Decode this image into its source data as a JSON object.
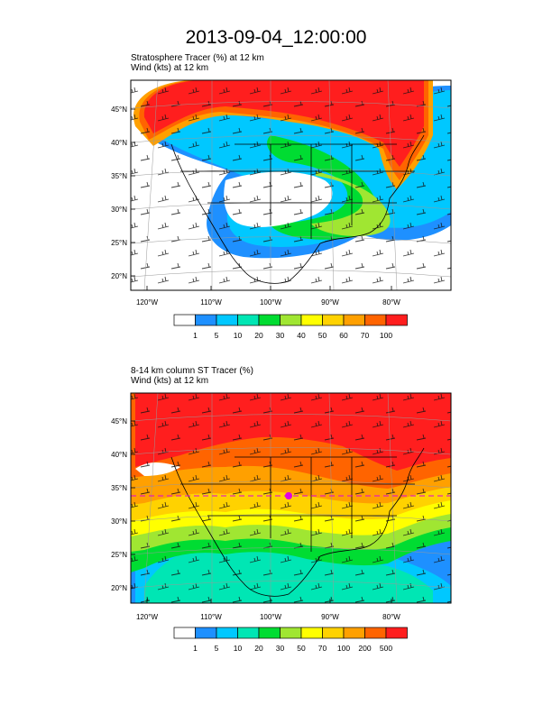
{
  "title": "2013-09-04_12:00:00",
  "panels": [
    {
      "title_line1": "Stratosphere Tracer   (%)    at   12 km",
      "title_line2": "Wind   (kts)    at   12 km",
      "lat_labels": [
        "45°N",
        "40°N",
        "35°N",
        "30°N",
        "25°N",
        "20°N"
      ],
      "lon_labels": [
        "120°W",
        "110°W",
        "100°W",
        "90°W",
        "80°W"
      ],
      "colorbar": {
        "levels": [
          "1",
          "5",
          "10",
          "20",
          "30",
          "40",
          "50",
          "60",
          "70",
          "100"
        ],
        "colors": [
          "#ffffff",
          "#1e90ff",
          "#00c8ff",
          "#00e6b4",
          "#00dc32",
          "#a0e632",
          "#ffff00",
          "#ffd200",
          "#ffa000",
          "#ff6400",
          "#ff1e1e"
        ]
      }
    },
    {
      "title_line1": "8-14 km column ST Tracer   (%)",
      "title_line2": "Wind   (kts)    at   12 km",
      "lat_labels": [
        "45°N",
        "40°N",
        "35°N",
        "30°N",
        "25°N",
        "20°N"
      ],
      "lon_labels": [
        "120°W",
        "110°W",
        "100°W",
        "90°W",
        "80°W"
      ],
      "colorbar": {
        "levels": [
          "1",
          "5",
          "10",
          "20",
          "30",
          "50",
          "70",
          "100",
          "200",
          "500"
        ],
        "colors": [
          "#ffffff",
          "#1e90ff",
          "#00c8ff",
          "#00e6b4",
          "#00dc32",
          "#a0e632",
          "#ffff00",
          "#ffd200",
          "#ffa000",
          "#ff6400",
          "#ff1e1e"
        ]
      }
    }
  ]
}
